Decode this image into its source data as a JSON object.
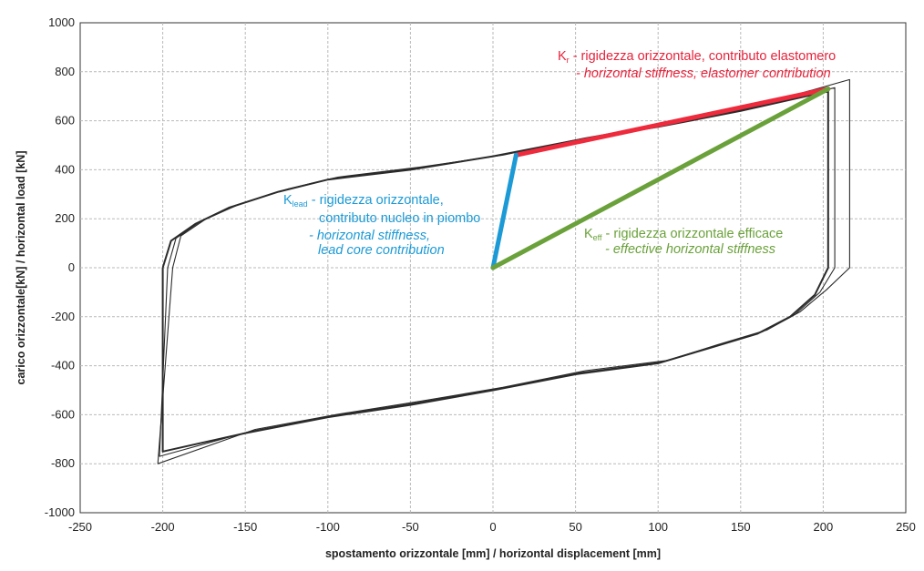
{
  "chart_data": {
    "type": "line",
    "xlabel": "spostamento orizzontale [mm] / horizontal displacement [mm]",
    "ylabel": "carico orizzontale[kN] / horizontal load [kN]",
    "xlim": [
      -250,
      250
    ],
    "ylim": [
      -1000,
      1000
    ],
    "x_ticks": [
      -250,
      -200,
      -150,
      -100,
      -50,
      0,
      50,
      100,
      150,
      200,
      250
    ],
    "y_ticks": [
      -1000,
      -800,
      -600,
      -400,
      -200,
      0,
      200,
      400,
      600,
      800,
      1000
    ],
    "grid": true,
    "hysteresis_loops": [
      {
        "upper": [
          [
            -200,
            0
          ],
          [
            -195,
            110
          ],
          [
            -180,
            180
          ],
          [
            -160,
            245
          ],
          [
            -130,
            310
          ],
          [
            -100,
            360
          ],
          [
            -50,
            400
          ],
          [
            0,
            455
          ],
          [
            50,
            520
          ],
          [
            100,
            575
          ],
          [
            150,
            640
          ],
          [
            203,
            720
          ]
        ],
        "lower": [
          [
            203,
            0
          ],
          [
            195,
            -110
          ],
          [
            180,
            -200
          ],
          [
            160,
            -270
          ],
          [
            130,
            -330
          ],
          [
            100,
            -390
          ],
          [
            50,
            -435
          ],
          [
            0,
            -500
          ],
          [
            -50,
            -560
          ],
          [
            -100,
            -610
          ],
          [
            -150,
            -675
          ],
          [
            -200,
            -750
          ]
        ]
      },
      {
        "upper": [
          [
            -197,
            0
          ],
          [
            -192,
            120
          ],
          [
            -177,
            190
          ],
          [
            -157,
            252
          ],
          [
            -127,
            316
          ],
          [
            -97,
            365
          ],
          [
            -47,
            406
          ],
          [
            3,
            458
          ],
          [
            53,
            525
          ],
          [
            103,
            582
          ],
          [
            153,
            648
          ],
          [
            207,
            735
          ]
        ],
        "lower": [
          [
            207,
            0
          ],
          [
            198,
            -100
          ],
          [
            183,
            -190
          ],
          [
            163,
            -262
          ],
          [
            133,
            -322
          ],
          [
            103,
            -384
          ],
          [
            53,
            -428
          ],
          [
            3,
            -494
          ],
          [
            -47,
            -552
          ],
          [
            -97,
            -604
          ],
          [
            -147,
            -668
          ],
          [
            -202,
            -770
          ]
        ]
      },
      {
        "upper": [
          [
            -194,
            0
          ],
          [
            -189,
            130
          ],
          [
            -174,
            198
          ],
          [
            -154,
            258
          ],
          [
            -124,
            322
          ],
          [
            -94,
            370
          ],
          [
            -44,
            411
          ],
          [
            6,
            460
          ],
          [
            56,
            530
          ],
          [
            106,
            590
          ],
          [
            156,
            655
          ],
          [
            216,
            768
          ]
        ],
        "lower": [
          [
            216,
            0
          ],
          [
            202,
            -90
          ],
          [
            186,
            -180
          ],
          [
            166,
            -254
          ],
          [
            136,
            -314
          ],
          [
            106,
            -378
          ],
          [
            56,
            -420
          ],
          [
            6,
            -488
          ],
          [
            -44,
            -545
          ],
          [
            -94,
            -598
          ],
          [
            -144,
            -660
          ],
          [
            -203,
            -800
          ]
        ]
      }
    ],
    "stiffness_lines": [
      {
        "name": "Kr",
        "color": "#ee2a3c",
        "points": [
          [
            14,
            460
          ],
          [
            203,
            730
          ]
        ]
      },
      {
        "name": "Klead",
        "color": "#1b9ad6",
        "points": [
          [
            0,
            0
          ],
          [
            14,
            460
          ]
        ]
      },
      {
        "name": "Keff",
        "color": "#6aa13a",
        "points": [
          [
            0,
            0
          ],
          [
            203,
            730
          ]
        ]
      }
    ]
  },
  "annotations": {
    "kr": {
      "symbol": "K",
      "sub": "r",
      "line1": " - rigidezza orizzontale, contributo elastomero",
      "line2": "- horizontal stiffness, elastomer contribution",
      "color": "#e8223a"
    },
    "klead": {
      "symbol": "K",
      "sub": "lead",
      "line1": " - rigidezza orizzontale,",
      "line2": "contributo nucleo in piombo",
      "line3": "- horizontal stiffness,",
      "line4": "lead core contribution",
      "color": "#1b9ad6"
    },
    "keff": {
      "symbol": "K",
      "sub": "eff",
      "line1": " - rigidezza orizzontale efficace",
      "line2": "- effective horizontal stiffness",
      "color": "#6aa13a"
    }
  }
}
